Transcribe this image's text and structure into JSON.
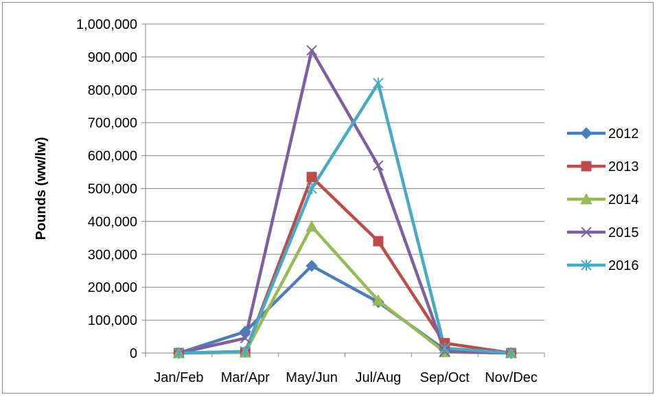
{
  "chart_data": {
    "type": "line",
    "title": "",
    "xlabel": "",
    "ylabel": "Pounds (ww/lw)",
    "ylim": [
      0,
      1000000
    ],
    "yticks": [
      0,
      100000,
      200000,
      300000,
      400000,
      500000,
      600000,
      700000,
      800000,
      900000,
      1000000
    ],
    "ytick_labels": [
      "0",
      "100,000",
      "200,000",
      "300,000",
      "400,000",
      "500,000",
      "600,000",
      "700,000",
      "800,000",
      "900,000",
      "1,000,000"
    ],
    "categories": [
      "Jan/Feb",
      "Mar/Apr",
      "May/Jun",
      "Jul/Aug",
      "Sep/Oct",
      "Nov/Dec"
    ],
    "grid": "horizontal",
    "legend": "right",
    "series": [
      {
        "name": "2012",
        "color": "#4A7EBB",
        "marker": "diamond",
        "values": [
          0,
          65000,
          265000,
          155000,
          10000,
          0
        ]
      },
      {
        "name": "2013",
        "color": "#BE4B48",
        "marker": "square",
        "values": [
          0,
          2000,
          535000,
          340000,
          30000,
          0
        ]
      },
      {
        "name": "2014",
        "color": "#98B954",
        "marker": "triangle",
        "values": [
          0,
          2000,
          385000,
          160000,
          3000,
          0
        ]
      },
      {
        "name": "2015",
        "color": "#7D60A0",
        "marker": "x",
        "values": [
          0,
          45000,
          920000,
          570000,
          5000,
          0
        ]
      },
      {
        "name": "2016",
        "color": "#46AAC5",
        "marker": "star",
        "values": [
          0,
          5000,
          500000,
          820000,
          15000,
          0
        ]
      }
    ]
  }
}
